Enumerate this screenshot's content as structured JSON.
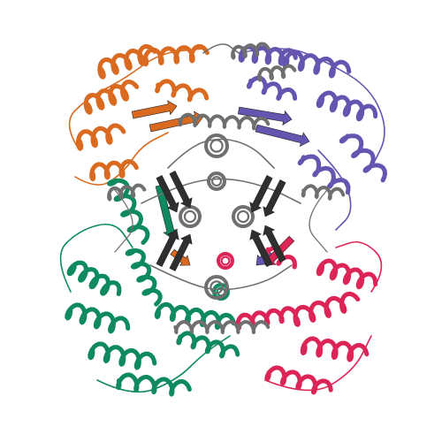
{
  "image": {
    "subject": "protein-ribbon-structure",
    "background": "#ffffff"
  },
  "chains": [
    {
      "id": "orange",
      "color": "#d96a1f",
      "region": "top-left"
    },
    {
      "id": "purple",
      "color": "#6655b0",
      "region": "top-right"
    },
    {
      "id": "green",
      "color": "#0f8a5f",
      "region": "bottom-left"
    },
    {
      "id": "crimson",
      "color": "#dd2457",
      "region": "bottom-right"
    },
    {
      "id": "gray",
      "color": "#6f6f6f",
      "region": "center"
    },
    {
      "id": "dark",
      "color": "#2f2f2f",
      "region": "core"
    }
  ]
}
